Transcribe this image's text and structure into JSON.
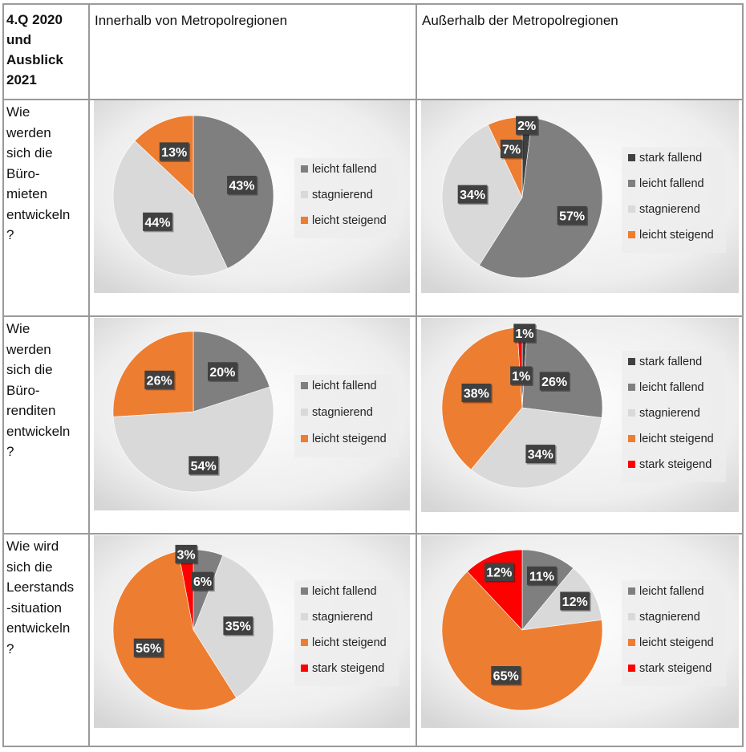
{
  "table": {
    "corner": [
      "4.Q 2020",
      "und",
      "Ausblick",
      "2021"
    ],
    "col_inside": "Innerhalb von Metropolregionen",
    "col_outside": "Außerhalb der Metropolregionen",
    "rows": [
      {
        "question": [
          "Wie",
          "werden",
          "sich die",
          "Büro-",
          "mieten",
          "entwickeln",
          "?"
        ]
      },
      {
        "question": [
          "Wie",
          "werden",
          "sich die",
          "Büro-",
          "renditen",
          "entwickeln",
          "?"
        ]
      },
      {
        "question": [
          "Wie wird",
          "sich die",
          "Leerstands",
          "-situation",
          "entwickeln",
          "?"
        ]
      }
    ]
  },
  "colors": {
    "stark fallend": "#404040",
    "leicht fallend": "#7f7f7f",
    "stagnierend": "#d9d9d9",
    "leicht steigend": "#ed7d31",
    "stark steigend": "#ff0000"
  },
  "chart_data": [
    {
      "type": "pie",
      "categories": [
        "leicht fallend",
        "stagnierend",
        "leicht steigend"
      ],
      "values": [
        43,
        44,
        13
      ],
      "labels": [
        "43%",
        "44%",
        "13%"
      ],
      "legend": "right"
    },
    {
      "type": "pie",
      "categories": [
        "stark fallend",
        "leicht fallend",
        "stagnierend",
        "leicht steigend"
      ],
      "values": [
        2,
        57,
        34,
        7
      ],
      "labels": [
        "2%",
        "57%",
        "34%",
        "7%"
      ],
      "legend": "right"
    },
    {
      "type": "pie",
      "categories": [
        "leicht fallend",
        "stagnierend",
        "leicht steigend"
      ],
      "values": [
        20,
        54,
        26
      ],
      "labels": [
        "20%",
        "54%",
        "26%"
      ],
      "legend": "right"
    },
    {
      "type": "pie",
      "categories": [
        "stark fallend",
        "leicht fallend",
        "stagnierend",
        "leicht steigend",
        "stark steigend"
      ],
      "values": [
        1,
        26,
        34,
        38,
        1
      ],
      "labels": [
        "1%",
        "26%",
        "34%",
        "38%",
        "1%"
      ],
      "legend": "right"
    },
    {
      "type": "pie",
      "categories": [
        "leicht fallend",
        "stagnierend",
        "leicht steigend",
        "stark steigend"
      ],
      "values": [
        6,
        35,
        56,
        3
      ],
      "labels": [
        "6%",
        "35%",
        "56%",
        "3%"
      ],
      "legend": "right"
    },
    {
      "type": "pie",
      "categories": [
        "leicht fallend",
        "stagnierend",
        "leicht steigend",
        "stark steigend"
      ],
      "values": [
        11,
        12,
        65,
        12
      ],
      "labels": [
        "11%",
        "12%",
        "65%",
        "12%"
      ],
      "legend": "right"
    }
  ]
}
